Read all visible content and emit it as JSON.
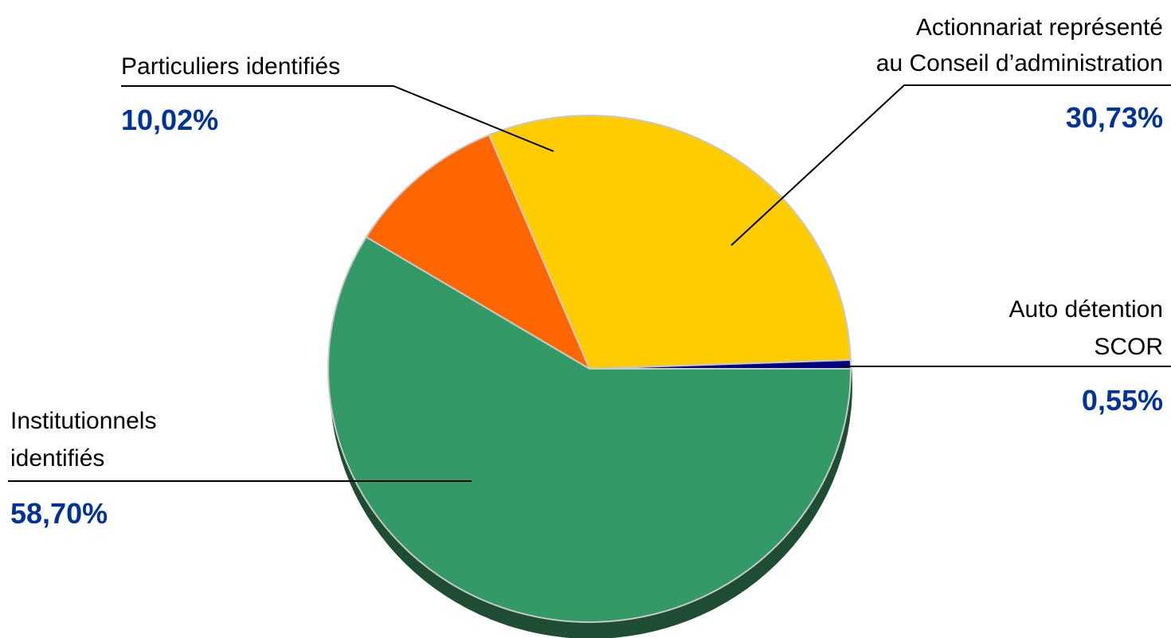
{
  "chart_data": {
    "type": "pie",
    "title": "",
    "value_color": "#003399",
    "slices": [
      {
        "label_lines": [
          "Actionnariat représenté",
          "au Conseil d’administration"
        ],
        "value": 30.73,
        "value_label": "30,73%",
        "color": "#FFCC00"
      },
      {
        "label_lines": [
          "Auto détention",
          "SCOR"
        ],
        "value": 0.55,
        "value_label": "0,55%",
        "color": "#000080"
      },
      {
        "label_lines": [
          "Institutionnels",
          "identifiés"
        ],
        "value": 58.7,
        "value_label": "58,70%",
        "color": "#339966"
      },
      {
        "label_lines": [
          "Particuliers identifiés"
        ],
        "value": 10.02,
        "value_label": "10,02%",
        "color": "#FF6600"
      }
    ]
  }
}
